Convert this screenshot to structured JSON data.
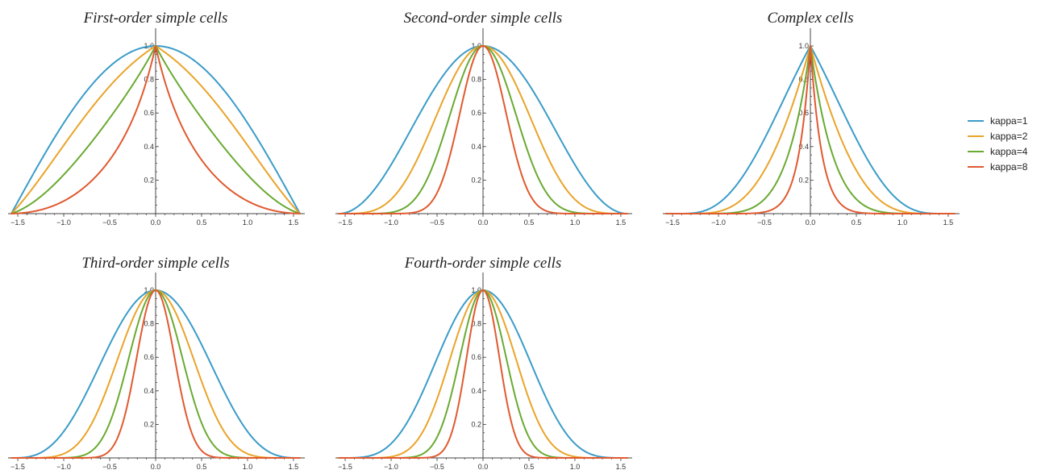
{
  "chart_data": {
    "type": "line",
    "x_range": [
      -1.5708,
      1.5708
    ],
    "ylim": [
      0,
      1.0
    ],
    "x_ticks": [
      "−1.5",
      "−1.0",
      "−0.5",
      "0.0",
      "0.5",
      "1.0",
      "1.5"
    ],
    "x_tick_values": [
      -1.5,
      -1.0,
      -0.5,
      0.0,
      0.5,
      1.0,
      1.5
    ],
    "y_ticks": [
      "0.2",
      "0.4",
      "0.6",
      "0.8",
      "1.0"
    ],
    "y_tick_values": [
      0.2,
      0.4,
      0.6,
      0.8,
      1.0
    ],
    "grid": false,
    "legend_position": "right",
    "series_styles": [
      {
        "name": "kappa=1",
        "kappa": 1,
        "color": "#3b9cc8"
      },
      {
        "name": "kappa=2",
        "kappa": 2,
        "color": "#e9a42a"
      },
      {
        "name": "kappa=4",
        "kappa": 4,
        "color": "#6aaa32"
      },
      {
        "name": "kappa=8",
        "kappa": 8,
        "color": "#e05a30"
      }
    ],
    "panels": [
      {
        "title": "First-order simple cells",
        "order": 1
      },
      {
        "title": "Second-order simple cells",
        "order": 2
      },
      {
        "title": "Complex cells",
        "order": 0
      },
      {
        "title": "Third-order simple cells",
        "order": 3
      },
      {
        "title": "Fourth-order simple cells",
        "order": 4
      }
    ]
  }
}
